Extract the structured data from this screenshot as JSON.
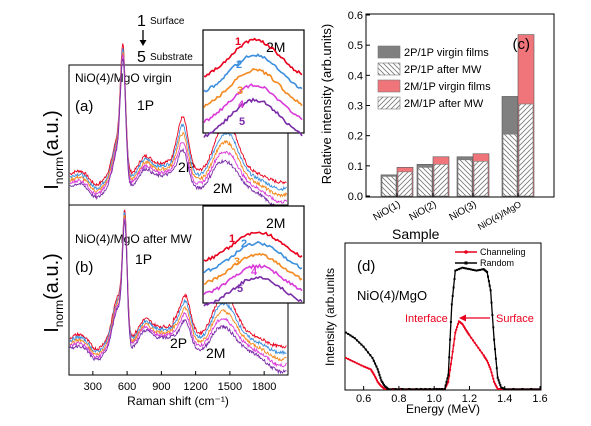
{
  "legend_depth": {
    "top_number": "1",
    "top_label": "Surface",
    "bottom_number": "5",
    "bottom_label": "Substrate"
  },
  "chart_data": [
    {
      "id": "a",
      "type": "line",
      "panel_label": "(a)",
      "title": "NiO(4)/MgO virgin",
      "ylabel_main": "I",
      "ylabel_sub": "norm",
      "ylabel_unit": "(a.u.)",
      "peak_labels": [
        "1P",
        "2P",
        "2M"
      ],
      "xlim": [
        100,
        2000
      ],
      "series": [
        {
          "name": "1",
          "color": "#e8001c"
        },
        {
          "name": "2",
          "color": "#3c8fde"
        },
        {
          "name": "3",
          "color": "#f4891f"
        },
        {
          "name": "4",
          "color": "#d93bd9"
        },
        {
          "name": "5",
          "color": "#7a2ca8"
        }
      ],
      "inset": {
        "title": "2M",
        "labels": [
          "1",
          "2",
          "3",
          "4",
          "5"
        ]
      }
    },
    {
      "id": "b",
      "type": "line",
      "panel_label": "(b)",
      "title": "NiO(4)/MgO after MW",
      "ylabel_main": "I",
      "ylabel_sub": "norm",
      "ylabel_unit": "(a.u.)",
      "peak_labels": [
        "1P",
        "2P",
        "2M"
      ],
      "xlabel": "Raman shift (cm⁻¹)",
      "xticks": [
        300,
        600,
        900,
        1200,
        1500,
        1800
      ],
      "xlim": [
        100,
        2000
      ],
      "series": [
        {
          "name": "1",
          "color": "#e8001c"
        },
        {
          "name": "2",
          "color": "#3c8fde"
        },
        {
          "name": "3",
          "color": "#f4891f"
        },
        {
          "name": "4",
          "color": "#d93bd9"
        },
        {
          "name": "5",
          "color": "#7a2ca8"
        }
      ],
      "inset": {
        "title": "2M",
        "labels": [
          "1",
          "2",
          "3",
          "4",
          "5"
        ]
      }
    },
    {
      "id": "c",
      "type": "bar",
      "panel_label": "(c)",
      "categories": [
        "NiO(1)",
        "NiO(2)",
        "NiO(3)",
        "NiO(4)/MgO"
      ],
      "series": [
        {
          "name": "2P/1P virgin films",
          "color": "#808080",
          "values": [
            0.07,
            0.105,
            0.13,
            0.33
          ]
        },
        {
          "name": "2P/1P after MW",
          "color": "#ffffff",
          "hatch": "back",
          "values": [
            0.065,
            0.095,
            0.12,
            0.205
          ]
        },
        {
          "name": "2M/1P virgin films",
          "color": "#f0757a",
          "values": [
            0.095,
            0.13,
            0.14,
            0.535
          ]
        },
        {
          "name": "2M/1P after MW",
          "color": "#ffffff",
          "hatch": "forward",
          "values": [
            0.08,
            0.105,
            0.115,
            0.305
          ]
        }
      ],
      "xlabel": "Sample",
      "ylabel": "Relative intensity (arb.units)",
      "ylim": [
        0,
        0.6
      ],
      "yticks": [
        "0.0",
        "0.1",
        "0.2",
        "0.3",
        "0.4",
        "0.5",
        "0.6"
      ]
    },
    {
      "id": "d",
      "type": "line",
      "panel_label": "(d)",
      "sample_label": "NiO(4)/MgO",
      "xlabel": "Energy (MeV)",
      "ylabel": "Intensity (arb.units",
      "xlim": [
        0.5,
        1.6
      ],
      "xticks": [
        "0.6",
        "0.8",
        "1.0",
        "1.2",
        "1.4",
        "1.6"
      ],
      "annotations": {
        "left": "Interface",
        "right": "Surface"
      },
      "series": [
        {
          "name": "Channeling",
          "color": "#e8001c",
          "x": [
            0.5,
            0.55,
            0.6,
            0.64,
            0.66,
            0.68,
            0.7,
            0.72,
            0.9,
            1.0,
            1.06,
            1.08,
            1.1,
            1.12,
            1.14,
            1.16,
            1.18,
            1.2,
            1.24,
            1.28,
            1.3,
            1.32,
            1.34,
            1.36,
            1.4,
            1.6
          ],
          "y": [
            0.22,
            0.19,
            0.16,
            0.14,
            0.1,
            0.05,
            0.02,
            0.0,
            0.0,
            0.0,
            0.0,
            0.05,
            0.22,
            0.4,
            0.48,
            0.46,
            0.42,
            0.38,
            0.31,
            0.24,
            0.2,
            0.14,
            0.05,
            0.0,
            0.0,
            0.0
          ]
        },
        {
          "name": "Random",
          "color": "#000000",
          "x": [
            0.5,
            0.55,
            0.6,
            0.65,
            0.68,
            0.7,
            0.72,
            0.74,
            0.9,
            1.0,
            1.06,
            1.08,
            1.1,
            1.12,
            1.16,
            1.2,
            1.24,
            1.28,
            1.3,
            1.32,
            1.34,
            1.36,
            1.38,
            1.4,
            1.6
          ],
          "y": [
            0.4,
            0.36,
            0.3,
            0.22,
            0.14,
            0.06,
            0.02,
            0.0,
            0.0,
            0.0,
            0.0,
            0.1,
            0.6,
            0.84,
            0.86,
            0.85,
            0.84,
            0.85,
            0.83,
            0.7,
            0.35,
            0.08,
            0.01,
            0.0,
            0.0
          ]
        }
      ]
    }
  ]
}
